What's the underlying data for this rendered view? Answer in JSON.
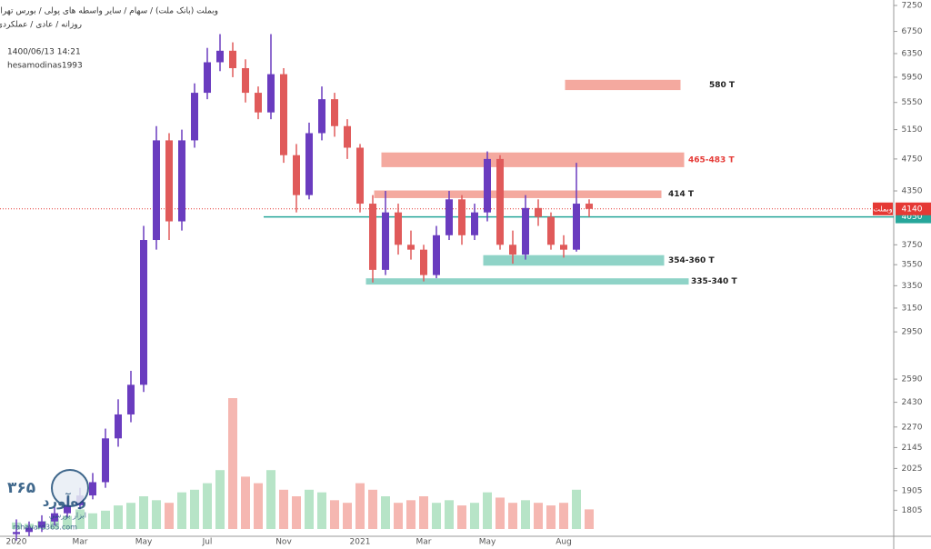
{
  "chart_data": {
    "type": "candlestick",
    "title": "وبملت (بانک ملت) / سهام / سایر واسطه های پولی / بورس تهران",
    "subtitle": "روزانه / عادی / عملکردی",
    "date_time": "1400/06/13 14:21",
    "user": "hesamodinas1993",
    "log_scale": true,
    "ylim": [
      1680,
      7360
    ],
    "yticks": [
      1805,
      1905,
      2025,
      2145,
      2270,
      2430,
      2590,
      2950,
      3150,
      3350,
      3550,
      3750,
      4350,
      4750,
      5150,
      5550,
      5950,
      6350,
      6750,
      7250
    ],
    "categories": [
      "2020",
      null,
      null,
      null,
      null,
      "Mar",
      null,
      null,
      null,
      null,
      "May",
      null,
      null,
      null,
      null,
      "Jul",
      null,
      null,
      null,
      null,
      null,
      "Nov",
      null,
      null,
      null,
      null,
      null,
      "2021",
      null,
      null,
      null,
      null,
      "Mar",
      null,
      null,
      null,
      null,
      "May",
      null,
      null,
      null,
      null,
      null,
      "Aug",
      null,
      null
    ],
    "open": [
      1690,
      1700,
      1720,
      1750,
      1790,
      1830,
      1880,
      1950,
      2200,
      2350,
      2550,
      3800,
      5000,
      4000,
      5000,
      5700,
      6200,
      6400,
      6100,
      5700,
      5400,
      6000,
      4800,
      4300,
      5100,
      5600,
      5200,
      4900,
      4200,
      3500,
      4100,
      3750,
      3700,
      3450,
      3850,
      4250,
      3850,
      4100,
      4750,
      3750,
      3650,
      4150,
      4050,
      3750,
      3700,
      4200
    ],
    "high": [
      1760,
      1750,
      1780,
      1820,
      1870,
      1920,
      2000,
      2260,
      2450,
      2650,
      3950,
      5200,
      5100,
      5150,
      5850,
      6450,
      6700,
      6550,
      6250,
      5800,
      6700,
      6100,
      4950,
      5250,
      5800,
      5700,
      5300,
      4950,
      4300,
      4350,
      4200,
      3900,
      3750,
      3950,
      4350,
      4300,
      4200,
      4850,
      4800,
      3900,
      4300,
      4250,
      4100,
      3850,
      4700,
      4250
    ],
    "low": [
      1660,
      1680,
      1700,
      1730,
      1770,
      1810,
      1860,
      1920,
      2150,
      2300,
      2500,
      3700,
      3800,
      3900,
      4900,
      5600,
      6050,
      5950,
      5550,
      5300,
      5300,
      4700,
      4100,
      4250,
      5000,
      5050,
      4750,
      4100,
      3380,
      3450,
      3650,
      3600,
      3390,
      3420,
      3800,
      3750,
      3800,
      4000,
      3700,
      3560,
      3600,
      3950,
      3700,
      3620,
      3680,
      4050
    ],
    "close": [
      1700,
      1720,
      1750,
      1790,
      1830,
      1880,
      1950,
      2200,
      2350,
      2550,
      3800,
      5000,
      4000,
      5000,
      5700,
      6200,
      6400,
      6100,
      5700,
      5400,
      6000,
      4800,
      4300,
      5100,
      5600,
      5200,
      4900,
      4200,
      3500,
      4100,
      3750,
      3700,
      3450,
      3850,
      4250,
      3850,
      4100,
      4750,
      3750,
      3650,
      4150,
      4050,
      3750,
      3700,
      4200,
      4140
    ],
    "up_color": "#6a3cbf",
    "down_color": "#e05a5a",
    "volume": [
      5,
      4,
      6,
      8,
      10,
      15,
      12,
      14,
      18,
      20,
      25,
      22,
      20,
      28,
      30,
      35,
      45,
      100,
      40,
      35,
      45,
      30,
      25,
      30,
      28,
      22,
      20,
      35,
      30,
      25,
      20,
      22,
      25,
      20,
      22,
      18,
      20,
      28,
      24,
      20,
      22,
      20,
      18,
      20,
      30,
      15
    ],
    "volume_lim": [
      0,
      100
    ],
    "volume_up_color": "#b7e4c7",
    "volume_down_color": "#f5b7b1",
    "levels": [
      {
        "value": 4050,
        "color": "#26a69a",
        "style": "solid"
      },
      {
        "value": 4140,
        "color": "#e53935",
        "style": "dotted",
        "name": "وبملت"
      }
    ],
    "zones": [
      {
        "low": 5750,
        "high": 5900,
        "label": "580 T",
        "color": "#f4a99f",
        "label_color": "#222"
      },
      {
        "low": 4650,
        "high": 4830,
        "label": "465-483 T",
        "color": "#f4a99f",
        "label_color": "#e53935"
      },
      {
        "low": 4270,
        "high": 4350,
        "label": "414 T",
        "color": "#f4a99f",
        "label_color": "#222"
      },
      {
        "low": 3545,
        "high": 3640,
        "label": "354-360 T",
        "color": "#8fd3c7",
        "label_color": "#222"
      },
      {
        "low": 3365,
        "high": 3415,
        "label": "335-340 T",
        "color": "#8fd3c7",
        "label_color": "#222"
      }
    ],
    "watermark": {
      "digits": "۳۶۵",
      "brand": "ره‌آورد",
      "tagline": "ابزار بورسی",
      "url": "rahavard365.com"
    }
  }
}
